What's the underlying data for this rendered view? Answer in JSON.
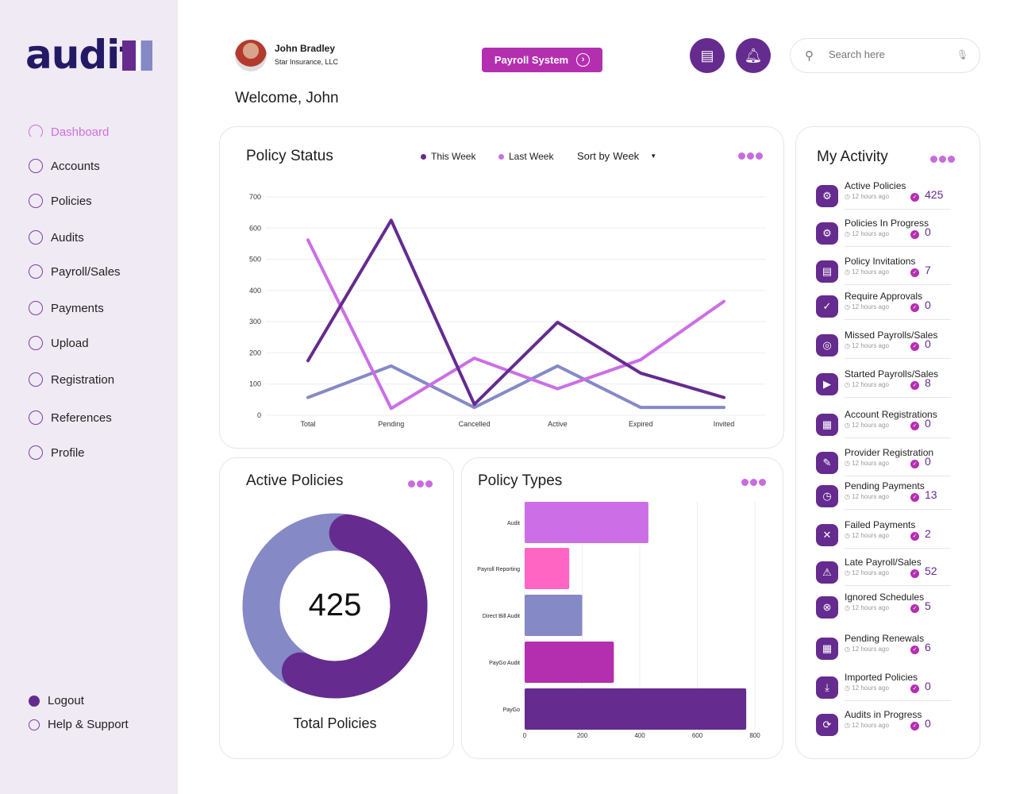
{
  "brand": {
    "logo_text": "audit",
    "logo_mark": "1"
  },
  "sidebar": {
    "items": [
      {
        "label": "Dashboard",
        "icon": "gauge-icon",
        "active": true
      },
      {
        "label": "Accounts",
        "icon": "user-circle-icon"
      },
      {
        "label": "Policies",
        "icon": "document-check-icon"
      },
      {
        "label": "Audits",
        "icon": "search-check-icon"
      },
      {
        "label": "Payroll/Sales",
        "icon": "money-icon"
      },
      {
        "label": "Payments",
        "icon": "card-check-icon"
      },
      {
        "label": "Upload",
        "icon": "upload-icon"
      },
      {
        "label": "Registration",
        "icon": "badge-check-icon"
      },
      {
        "label": "References",
        "icon": "reference-icon"
      },
      {
        "label": "Profile",
        "icon": "profile-icon"
      }
    ],
    "footer": [
      {
        "label": "Logout",
        "icon": "logout-icon"
      },
      {
        "label": "Help & Support",
        "icon": "help-icon"
      }
    ]
  },
  "header": {
    "user_name": "John Bradley",
    "company": "Star Insurance, LLC",
    "payroll_button": "Payroll System",
    "search_placeholder": "Search here",
    "welcome": "Welcome, John"
  },
  "colors": {
    "primary": "#652b8f",
    "accent": "#b42fb0",
    "pink": "#cc6ee6",
    "lavender": "#8589c6",
    "hotpink": "#ff66c4",
    "sidebar_bg": "#f0eaf5"
  },
  "policy_status": {
    "title": "Policy Status",
    "legend": [
      "This Week",
      "Last Week"
    ],
    "sort_label": "Sort by",
    "sort_value": "Week"
  },
  "chart_data": [
    {
      "type": "line",
      "title": "Policy Status",
      "categories": [
        "Total",
        "Pending",
        "Cancelled",
        "Active",
        "Expired",
        "Invited"
      ],
      "ylim": [
        0,
        700
      ],
      "yticks": [
        0,
        100,
        200,
        300,
        400,
        500,
        600,
        700
      ],
      "grid": true,
      "legend": "top",
      "series": [
        {
          "name": "This Week",
          "color": "#652b8f",
          "values": [
            175,
            625,
            35,
            298,
            135,
            57
          ]
        },
        {
          "name": "Last Week",
          "color": "#cc6ee6",
          "values": [
            562,
            22,
            183,
            85,
            178,
            365
          ]
        },
        {
          "color": "#8589c6",
          "values": [
            57,
            158,
            25,
            158,
            25,
            25
          ]
        }
      ]
    },
    {
      "type": "bar",
      "orientation": "horizontal",
      "title": "Policy Types",
      "categories": [
        "Audit",
        "Payroll Reporting",
        "Direct Bill Audit",
        "PayGo Audit",
        "PayGo"
      ],
      "values": [
        430,
        155,
        200,
        310,
        770
      ],
      "colors": [
        "#cc6ee6",
        "#ff66c4",
        "#8589c6",
        "#b42fb0",
        "#652b8f"
      ],
      "xlim": [
        0,
        800
      ],
      "xticks": [
        0,
        200,
        400,
        600,
        800
      ],
      "grid": true
    },
    {
      "type": "pie",
      "donut": true,
      "title": "Active Policies",
      "center_value": "425",
      "caption": "Total Policies",
      "values": [
        63,
        37
      ],
      "colors": [
        "#652b8f",
        "#8589c6"
      ]
    }
  ],
  "active_policies": {
    "title": "Active Policies",
    "value": "425",
    "caption": "Total Policies"
  },
  "policy_types": {
    "title": "Policy Types"
  },
  "activity": {
    "title": "My Activity",
    "items": [
      {
        "label": "Active Policies",
        "time": "12 hours ago",
        "value": "425",
        "icon": "gear-icon",
        "glyph": "⚙"
      },
      {
        "label": "Policies In Progress",
        "time": "12 hours ago",
        "value": "0",
        "icon": "gears-icon",
        "glyph": "⚙"
      },
      {
        "label": "Policy Invitations",
        "time": "12 hours ago",
        "value": "7",
        "icon": "briefcase-icon",
        "glyph": "▤"
      },
      {
        "label": "Require Approvals",
        "time": "12 hours ago",
        "value": "0",
        "icon": "check-circle-icon",
        "glyph": "✓"
      },
      {
        "label": "Missed Payrolls/Sales",
        "time": "12 hours ago",
        "value": "0",
        "icon": "target-icon",
        "glyph": "◎"
      },
      {
        "label": "Started Payrolls/Sales",
        "time": "12 hours ago",
        "value": "8",
        "icon": "play-icon",
        "glyph": "▶"
      },
      {
        "label": "Account Registrations",
        "time": "12 hours ago",
        "value": "0",
        "icon": "browser-icon",
        "glyph": "▦"
      },
      {
        "label": "Provider Registration",
        "time": "12 hours ago",
        "value": "0",
        "icon": "user-edit-icon",
        "glyph": "✎"
      },
      {
        "label": "Pending Payments",
        "time": "12 hours ago",
        "value": "13",
        "icon": "clock-icon",
        "glyph": "◷"
      },
      {
        "label": "Failed Payments",
        "time": "12 hours ago",
        "value": "2",
        "icon": "gear-x-icon",
        "glyph": "✕"
      },
      {
        "label": "Late Payroll/Sales",
        "time": "12 hours ago",
        "value": "52",
        "icon": "warning-icon",
        "glyph": "⚠"
      },
      {
        "label": "Ignored Schedules",
        "time": "12 hours ago",
        "value": "5",
        "icon": "cancel-click-icon",
        "glyph": "⊗"
      },
      {
        "label": "Pending Renewals",
        "time": "12 hours ago",
        "value": "6",
        "icon": "calendar-icon",
        "glyph": "▦"
      },
      {
        "label": "Imported Policies",
        "time": "12 hours ago",
        "value": "0",
        "icon": "import-icon",
        "glyph": "⤓"
      },
      {
        "label": "Audits in Progress",
        "time": "12 hours ago",
        "value": "0",
        "icon": "sync-gear-icon",
        "glyph": "⟳"
      }
    ]
  }
}
